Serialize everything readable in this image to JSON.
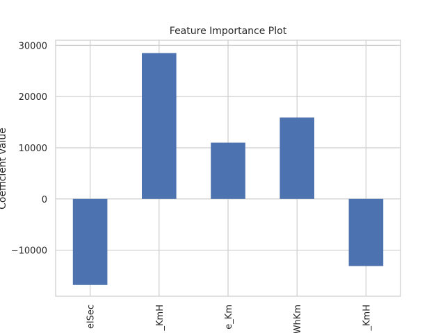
{
  "chart_data": {
    "type": "bar",
    "title": "Feature Importance Plot",
    "xlabel": "",
    "ylabel": "Coefficient value",
    "categories": [
      "elSec",
      "_KmH",
      "e_Km",
      "WhKm",
      "_KmH"
    ],
    "values": [
      -16800,
      28500,
      11000,
      15900,
      -13100
    ],
    "ylim": [
      -19000,
      31000
    ],
    "yticks": [
      -10000,
      0,
      10000,
      20000,
      30000
    ],
    "ytick_labels": [
      "−10000",
      "0",
      "10000",
      "20000",
      "30000"
    ],
    "grid": true,
    "bar_color": "#4c72b0"
  }
}
